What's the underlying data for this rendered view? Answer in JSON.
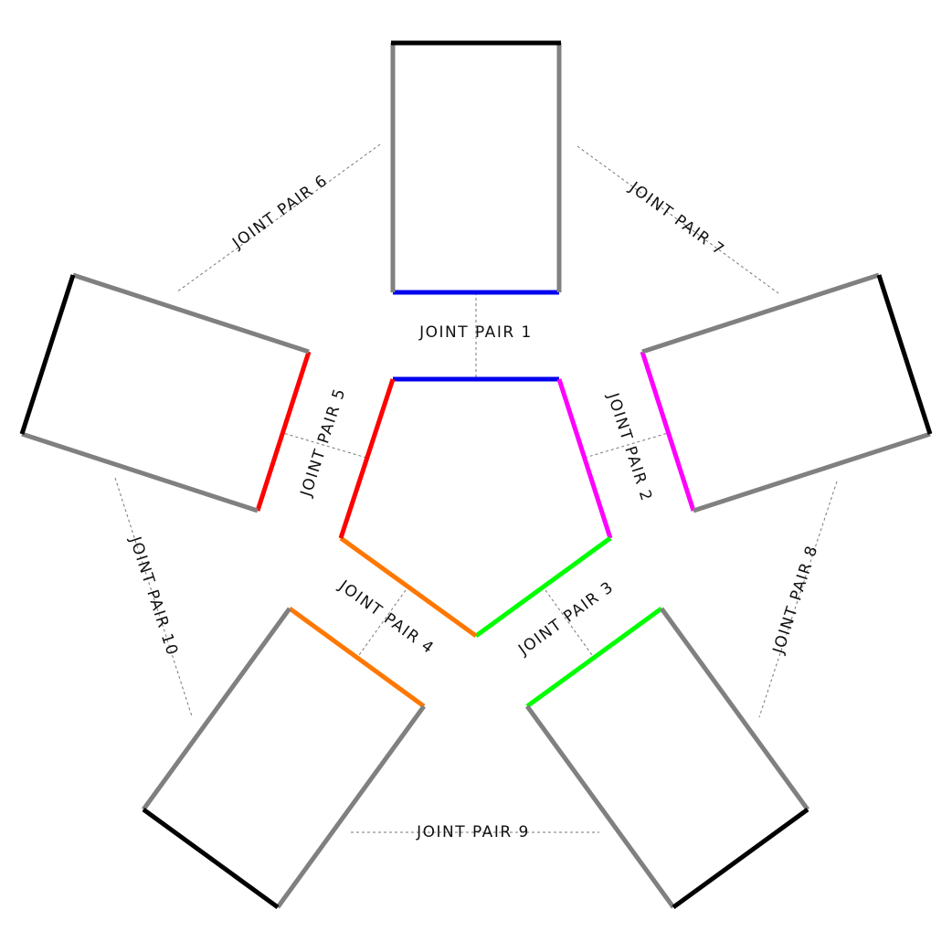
{
  "colors": {
    "pair1": "#0000ee",
    "pair2": "#ff00ff",
    "pair3": "#00ff00",
    "pair4": "#ff7700",
    "pair5": "#ff0000",
    "side": "#808080",
    "outer": "#000000"
  },
  "labels": {
    "jp1": "JOINT PAIR 1",
    "jp2": "JOINT PAIR 2",
    "jp3": "JOINT PAIR 3",
    "jp4": "JOINT PAIR 4",
    "jp5": "JOINT PAIR 5",
    "jp6": "JOINT PAIR 6",
    "jp7": "JOINT PAIR 7",
    "jp8": "JOINT PAIR 8",
    "jp9": "JOINT PAIR 9",
    "jp10": "JOINT PAIR 10"
  }
}
